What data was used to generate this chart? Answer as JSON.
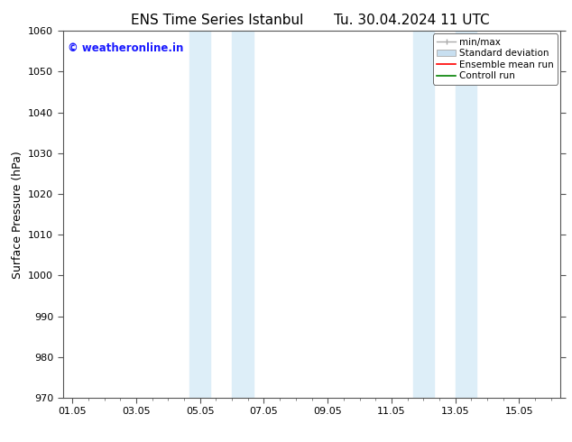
{
  "title_left": "ENS Time Series Istanbul",
  "title_right": "Tu. 30.04.2024 11 UTC",
  "ylabel": "Surface Pressure (hPa)",
  "ylim": [
    970,
    1060
  ],
  "yticks": [
    970,
    980,
    990,
    1000,
    1010,
    1020,
    1030,
    1040,
    1050,
    1060
  ],
  "xlim": [
    -0.3,
    15.3
  ],
  "xtick_labels": [
    "01.05",
    "03.05",
    "05.05",
    "07.05",
    "09.05",
    "11.05",
    "13.05",
    "15.05"
  ],
  "xtick_positions": [
    0,
    2,
    4,
    6,
    8,
    10,
    12,
    14
  ],
  "shaded_regions": [
    {
      "start": 3.67,
      "end": 4.33,
      "color": "#ddeef8"
    },
    {
      "start": 5.0,
      "end": 5.67,
      "color": "#ddeef8"
    },
    {
      "start": 10.67,
      "end": 11.33,
      "color": "#ddeef8"
    },
    {
      "start": 12.0,
      "end": 12.67,
      "color": "#ddeef8"
    }
  ],
  "watermark_text": "© weatheronline.in",
  "watermark_color": "#1a1aff",
  "watermark_fontsize": 8.5,
  "bg_color": "#ffffff",
  "minor_tick_color": "#888888",
  "spine_color": "#555555",
  "title_fontsize": 11,
  "tick_fontsize": 8,
  "ylabel_fontsize": 9,
  "legend_fontsize": 7.5,
  "minmax_color": "#aaaaaa",
  "std_facecolor": "#c8dff0",
  "std_edgecolor": "#aaaaaa",
  "ensemble_color": "red",
  "control_color": "green"
}
